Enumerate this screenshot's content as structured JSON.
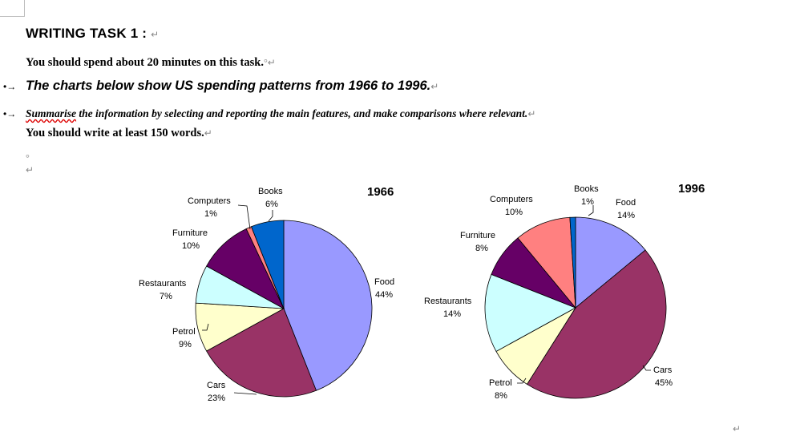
{
  "doc": {
    "title": "WRITING TASK 1 :",
    "line1": "You should spend about 20 minutes on this task.",
    "bullet1": "The charts below show US spending patterns from 1966 to 1996.",
    "bullet2_word": "Summarise",
    "bullet2_rest": " the information by selecting and reporting the main features, and make comparisons where relevant.",
    "line4": "You should write at least 150 words."
  },
  "chart_data": [
    {
      "type": "pie",
      "title": "1966",
      "categories": [
        "Food",
        "Cars",
        "Petrol",
        "Restaurants",
        "Furniture",
        "Computers",
        "Books"
      ],
      "values": [
        44,
        23,
        9,
        7,
        10,
        1,
        6
      ],
      "labels": [
        "44%",
        "23%",
        "9%",
        "7%",
        "10%",
        "1%",
        "6%"
      ],
      "colors": [
        "#9999ff",
        "#993366",
        "#ffffcc",
        "#ccffff",
        "#660066",
        "#ff8080",
        "#0066cc"
      ]
    },
    {
      "type": "pie",
      "title": "1996",
      "categories": [
        "Food",
        "Cars",
        "Petrol",
        "Restaurants",
        "Furniture",
        "Computers",
        "Books"
      ],
      "values": [
        14,
        45,
        8,
        14,
        8,
        10,
        1
      ],
      "labels": [
        "14%",
        "45%",
        "8%",
        "14%",
        "8%",
        "10%",
        "1%"
      ],
      "colors": [
        "#9999ff",
        "#993366",
        "#ffffcc",
        "#ccffff",
        "#660066",
        "#ff8080",
        "#0066cc"
      ]
    }
  ]
}
